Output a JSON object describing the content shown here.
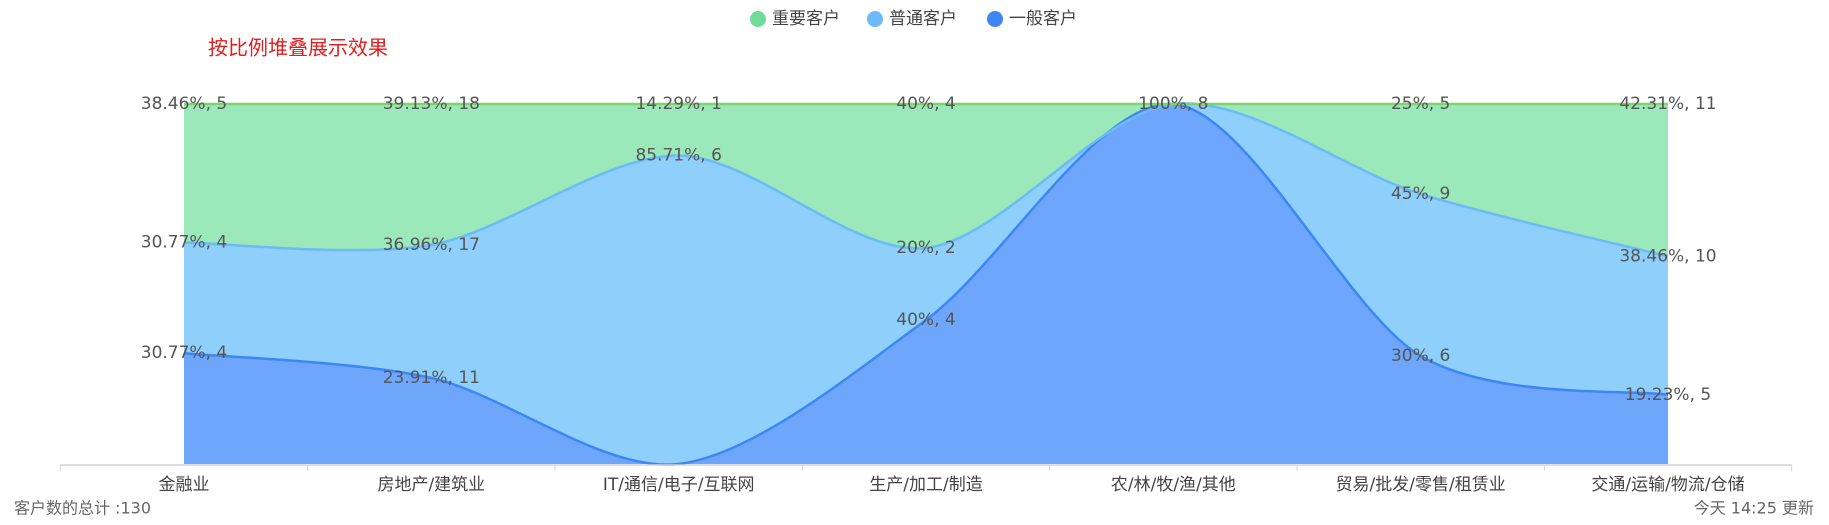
{
  "chart_data": {
    "type": "stacked-percent-area",
    "title": "按比例堆叠展示效果",
    "categories": [
      "金融业",
      "房地产/建筑业",
      "IT/通信/电子/互联网",
      "生产/加工/制造",
      "农/林/牧/渔/其他",
      "贸易/批发/零售/租赁业",
      "交通/运输/物流/仓储"
    ],
    "series": [
      {
        "name": "一般客户",
        "color": "#3f86f5",
        "fill": "#6ea6fc",
        "values": [
          30.77,
          23.91,
          0,
          40,
          100,
          30,
          19.23
        ],
        "value_labels": [
          "30.77%, 4",
          "23.91%, 11",
          null,
          "40%, 4",
          "100%, 8",
          "30%, 6",
          "19.23%, 5"
        ]
      },
      {
        "name": "普通客户",
        "color": "#6cbaf8",
        "fill": "#8fcffc",
        "values": [
          30.77,
          36.96,
          85.71,
          20,
          0,
          45,
          38.46
        ],
        "value_labels": [
          "30.77%, 4",
          "36.96%, 17",
          "85.71%, 6",
          "20%, 2",
          null,
          "45%, 9",
          "38.46%, 10"
        ]
      },
      {
        "name": "重要客户",
        "color": "#7fd36e",
        "fill": "#9be8ba",
        "legend_color": "#6fdc9a",
        "values": [
          38.46,
          39.13,
          14.29,
          40,
          0,
          25,
          42.31
        ],
        "value_labels": [
          "38.46%, 5",
          "39.13%, 18",
          "14.29%, 1",
          "40%, 4",
          null,
          "25%, 5",
          "42.31%, 11"
        ]
      }
    ],
    "ylim": [
      0,
      100
    ],
    "footer_left": "客户数的总计 :130",
    "footer_right": "今天 14:25 更新"
  }
}
